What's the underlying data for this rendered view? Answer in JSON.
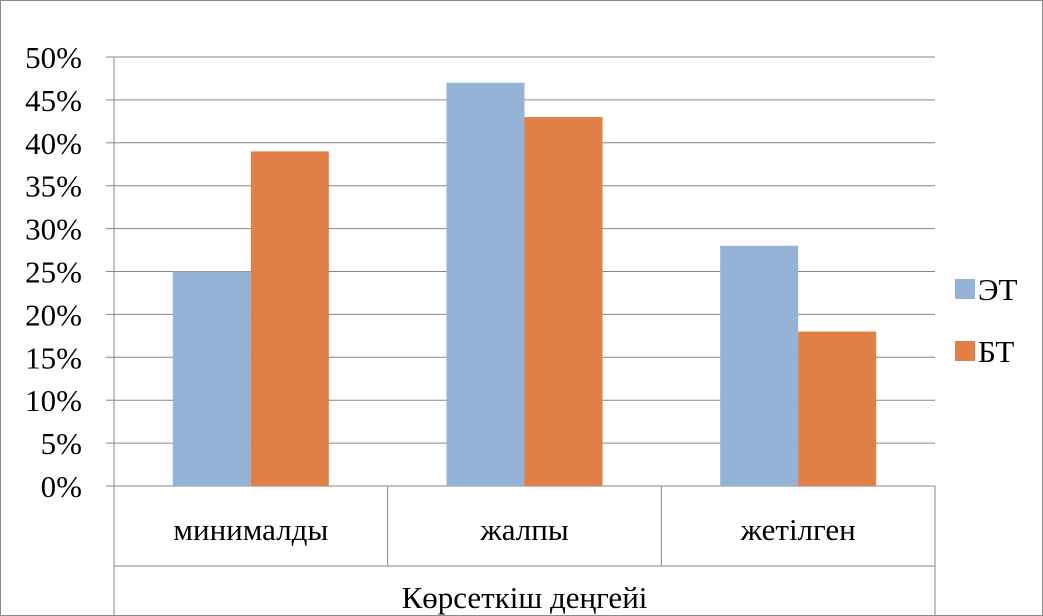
{
  "chart_data": {
    "type": "bar",
    "categories": [
      "минималды",
      "жалпы",
      "жетілген"
    ],
    "group_label": "Көрсеткіш деңгейі",
    "series": [
      {
        "name": "ЭТ",
        "values": [
          25,
          47,
          28
        ],
        "color": "#95b3d7"
      },
      {
        "name": "БТ",
        "values": [
          39,
          43,
          18
        ],
        "color": "#e07f46"
      }
    ],
    "y_ticks": [
      "0%",
      "5%",
      "10%",
      "15%",
      "20%",
      "25%",
      "30%",
      "35%",
      "40%",
      "45%",
      "50%"
    ],
    "ylim": [
      0,
      50
    ],
    "y_unit": "%",
    "grid": true,
    "legend_position": "right",
    "title": "",
    "xlabel": "",
    "ylabel": ""
  }
}
